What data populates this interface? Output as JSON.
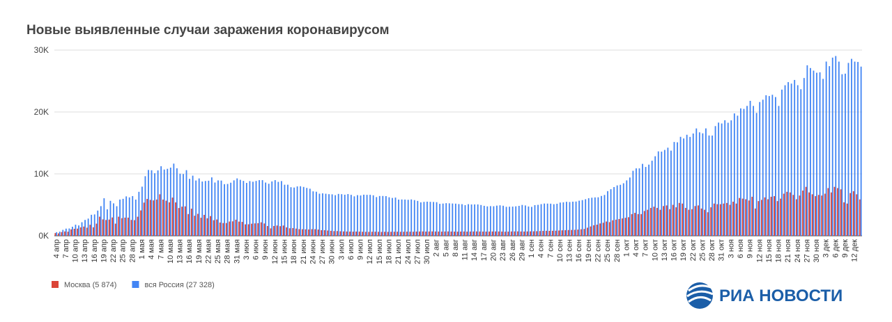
{
  "chart_data": {
    "type": "bar",
    "title": "Новые выявленные случаи заражения коронавирусом",
    "categories": [
      "4 апр",
      null,
      null,
      "7 апр",
      null,
      null,
      "10 апр",
      null,
      null,
      "13 апр",
      null,
      null,
      "16 апр",
      null,
      null,
      "19 апр",
      null,
      null,
      "22 апр",
      null,
      null,
      "25 апр",
      null,
      null,
      "28 апр",
      null,
      null,
      "1 мая",
      null,
      null,
      "4 мая",
      null,
      null,
      "7 мая",
      null,
      null,
      "10 мая",
      null,
      null,
      "13 мая",
      null,
      null,
      "16 мая",
      null,
      null,
      "19 мая",
      null,
      null,
      "22 мая",
      null,
      null,
      "25 мая",
      null,
      null,
      "28 мая",
      null,
      null,
      "31 мая",
      null,
      null,
      "3 июн",
      null,
      null,
      "6 июн",
      null,
      null,
      "9 июн",
      null,
      null,
      "12 июн",
      null,
      null,
      "15 июн",
      null,
      null,
      "18 июн",
      null,
      null,
      "21 июн",
      null,
      null,
      "24 июн",
      null,
      null,
      "27 июн",
      null,
      null,
      "30 июн",
      null,
      null,
      "3 июл",
      null,
      null,
      "6 июл",
      null,
      null,
      "9 июл",
      null,
      null,
      "12 июл",
      null,
      null,
      "15 июл",
      null,
      null,
      "18 июл",
      null,
      null,
      "21 июл",
      null,
      null,
      "24 июл",
      null,
      null,
      "27 июл",
      null,
      null,
      "30 июл",
      null,
      null,
      "2 авг",
      null,
      null,
      "5 авг",
      null,
      null,
      "8 авг",
      null,
      null,
      "11 авг",
      null,
      null,
      "14 авг",
      null,
      null,
      "17 авг",
      null,
      null,
      "20 авг",
      null,
      null,
      "23 авг",
      null,
      null,
      "26 авг",
      null,
      null,
      "29 авг",
      null,
      null,
      "1 сен",
      null,
      null,
      "4 сен",
      null,
      null,
      "7 сен",
      null,
      null,
      "10 сен",
      null,
      null,
      "13 сен",
      null,
      null,
      "16 сен",
      null,
      null,
      "19 сен",
      null,
      null,
      "22 сен",
      null,
      null,
      "25 сен",
      null,
      null,
      "28 сен",
      null,
      null,
      "1 окт",
      null,
      null,
      "4 окт",
      null,
      null,
      "7 окт",
      null,
      null,
      "10 окт",
      null,
      null,
      "13 окт",
      null,
      null,
      "16 окт",
      null,
      null,
      "19 окт",
      null,
      null,
      "22 окт",
      null,
      null,
      "25 окт",
      null,
      null,
      "28 окт",
      null,
      null,
      "31 окт",
      null,
      null,
      "3 ноя",
      null,
      null,
      "6 ноя",
      null,
      null,
      "9 ноя",
      null,
      null,
      "12 ноя",
      null,
      null,
      "15 ноя",
      null,
      null,
      "18 ноя",
      null,
      null,
      "21 ноя",
      null,
      null,
      "24 ноя",
      null,
      null,
      "27 ноя",
      null,
      null,
      "30 ноя",
      null,
      null,
      "3 дек",
      null,
      null,
      "6 дек",
      null,
      null,
      "9 дек",
      null,
      null,
      "12 дек",
      null,
      null
    ],
    "series": [
      {
        "name": "Москва (5 874)",
        "color": "#db4437",
        "values": [
          434,
          387,
          591,
          697,
          660,
          1030,
          1124,
          1154,
          1355,
          1489,
          1306,
          1774,
          1370,
          1959,
          3083,
          2649,
          2548,
          2612,
          2957,
          1958,
          3083,
          2846,
          2930,
          2927,
          2558,
          2522,
          3075,
          4100,
          5358,
          5948,
          5795,
          5714,
          5858,
          6703,
          5846,
          5667,
          5392,
          6169,
          5392,
          4481,
          4703,
          4748,
          3505,
          4375,
          3238,
          3545,
          2913,
          3374,
          2826,
          3179,
          2516,
          2631,
          2140,
          2054,
          2054,
          2297,
          2332,
          2595,
          2286,
          2238,
          1842,
          1855,
          1951,
          2001,
          2033,
          2170,
          1985,
          1572,
          1195,
          1579,
          1652,
          1547,
          1654,
          1360,
          1212,
          1240,
          1161,
          1067,
          1056,
          1035,
          1015,
          1070,
          1060,
          1000,
          900,
          900,
          850,
          800,
          750,
          760,
          720,
          700,
          690,
          680,
          660,
          680,
          670,
          650,
          640,
          630,
          650,
          660,
          640,
          620,
          650,
          630,
          640,
          650,
          660,
          640,
          650,
          670,
          660,
          650,
          680,
          690,
          700,
          680,
          690,
          700,
          690,
          680,
          670,
          690,
          700,
          680,
          670,
          660,
          680,
          690,
          670,
          680,
          690,
          700,
          690,
          680,
          670,
          680,
          690,
          700,
          690,
          680,
          660,
          670,
          690,
          700,
          710,
          690,
          680,
          700,
          710,
          720,
          740,
          760,
          780,
          800,
          790,
          800,
          820,
          850,
          880,
          900,
          920,
          940,
          960,
          1000,
          1050,
          1100,
          1300,
          1500,
          1700,
          1792,
          1990,
          2100,
          2300,
          2200,
          2500,
          2600,
          2700,
          2800,
          2900,
          3000,
          3500,
          3700,
          3500,
          3500,
          4000,
          4200,
          4500,
          4700,
          4500,
          4200,
          4800,
          4900,
          4300,
          5000,
          4600,
          5300,
          5200,
          4500,
          4200,
          4300,
          4800,
          4900,
          4400,
          4200,
          3800,
          4600,
          5200,
          5100,
          5100,
          5200,
          5300,
          5000,
          5500,
          5200,
          6100,
          6000,
          5900,
          5700,
          6300,
          4400,
          5600,
          5800,
          6200,
          5900,
          6300,
          6400,
          5600,
          6000,
          6800,
          7100,
          7000,
          6600,
          5900,
          6500,
          7300,
          7900,
          7000,
          6700,
          6400,
          6600,
          6500,
          6800,
          7700,
          7000,
          7900,
          7700,
          7500,
          5400,
          5200,
          6900,
          7200,
          6700,
          5874
        ]
      },
      {
        "name": "вся Россия (27 328)",
        "color": "#4285f4",
        "values": [
          582,
          658,
          954,
          1154,
          1175,
          1459,
          1786,
          1667,
          2186,
          2558,
          2774,
          3388,
          3448,
          4070,
          4785,
          6060,
          4268,
          5642,
          5236,
          4774,
          5849,
          5966,
          6361,
          6198,
          6411,
          5841,
          7099,
          7933,
          9623,
          10633,
          10581,
          10102,
          10559,
          11231,
          10699,
          10817,
          11012,
          11656,
          10899,
          10028,
          9974,
          10598,
          9200,
          9709,
          8926,
          9263,
          8764,
          8849,
          8894,
          9434,
          8599,
          8946,
          8915,
          8338,
          8371,
          8572,
          8952,
          9268,
          9035,
          8863,
          8536,
          8831,
          8726,
          8855,
          8984,
          8985,
          8595,
          8404,
          8779,
          8987,
          8706,
          8835,
          8246,
          8248,
          7843,
          7790,
          7972,
          8000,
          7889,
          7728,
          7600,
          7176,
          7113,
          6800,
          6852,
          6791,
          6719,
          6693,
          6556,
          6760,
          6718,
          6632,
          6736,
          6611,
          6368,
          6562,
          6509,
          6635,
          6611,
          6615,
          6537,
          6248,
          6422,
          6428,
          6406,
          6214,
          6109,
          6170,
          5842,
          5862,
          5848,
          5811,
          5871,
          5765,
          5635,
          5395,
          5475,
          5509,
          5482,
          5462,
          5427,
          5159,
          5204,
          5267,
          5241,
          5212,
          5189,
          5118,
          5102,
          4945,
          5102,
          5057,
          5065,
          5061,
          4969,
          4839,
          4748,
          4790,
          4767,
          4870,
          4921,
          4852,
          4676,
          4696,
          4711,
          4758,
          4829,
          4980,
          4897,
          4729,
          4670,
          4952,
          4995,
          5110,
          5205,
          5195,
          5185,
          5099,
          5172,
          5363,
          5406,
          5488,
          5449,
          5509,
          5529,
          5670,
          5762,
          5905,
          6065,
          6148,
          6196,
          6215,
          6431,
          6595,
          7212,
          7523,
          7867,
          8135,
          8232,
          8481,
          8945,
          9412,
          10499,
          10888,
          10888,
          11615,
          11115,
          11493,
          12126,
          12846,
          13634,
          13592,
          13868,
          14231,
          13754,
          15150,
          15099,
          15982,
          15722,
          16319,
          15971,
          16521,
          17340,
          16710,
          16550,
          17347,
          16202,
          16193,
          17717,
          18283,
          18140,
          18665,
          18257,
          18648,
          19768,
          19404,
          20582,
          20498,
          20977,
          21798,
          20977,
          19851,
          21608,
          21983,
          22702,
          22572,
          22778,
          22410,
          20977,
          23610,
          24318,
          24822,
          24581,
          25173,
          24326,
          23675,
          25487,
          27543,
          27100,
          26683,
          26338,
          26402,
          25345,
          28145,
          27403,
          28782,
          29039,
          28137,
          26097,
          26190,
          27927,
          28585,
          28137,
          28080,
          27328
        ]
      }
    ],
    "ylim": [
      0,
      30000
    ],
    "yticks": [
      {
        "value": 0,
        "label": "0K"
      },
      {
        "value": 10000,
        "label": "10K"
      },
      {
        "value": 20000,
        "label": "20K"
      },
      {
        "value": 30000,
        "label": "30K"
      }
    ],
    "grid": true,
    "legend": "bottom"
  },
  "logo_text": "РИА НОВОСТИ"
}
